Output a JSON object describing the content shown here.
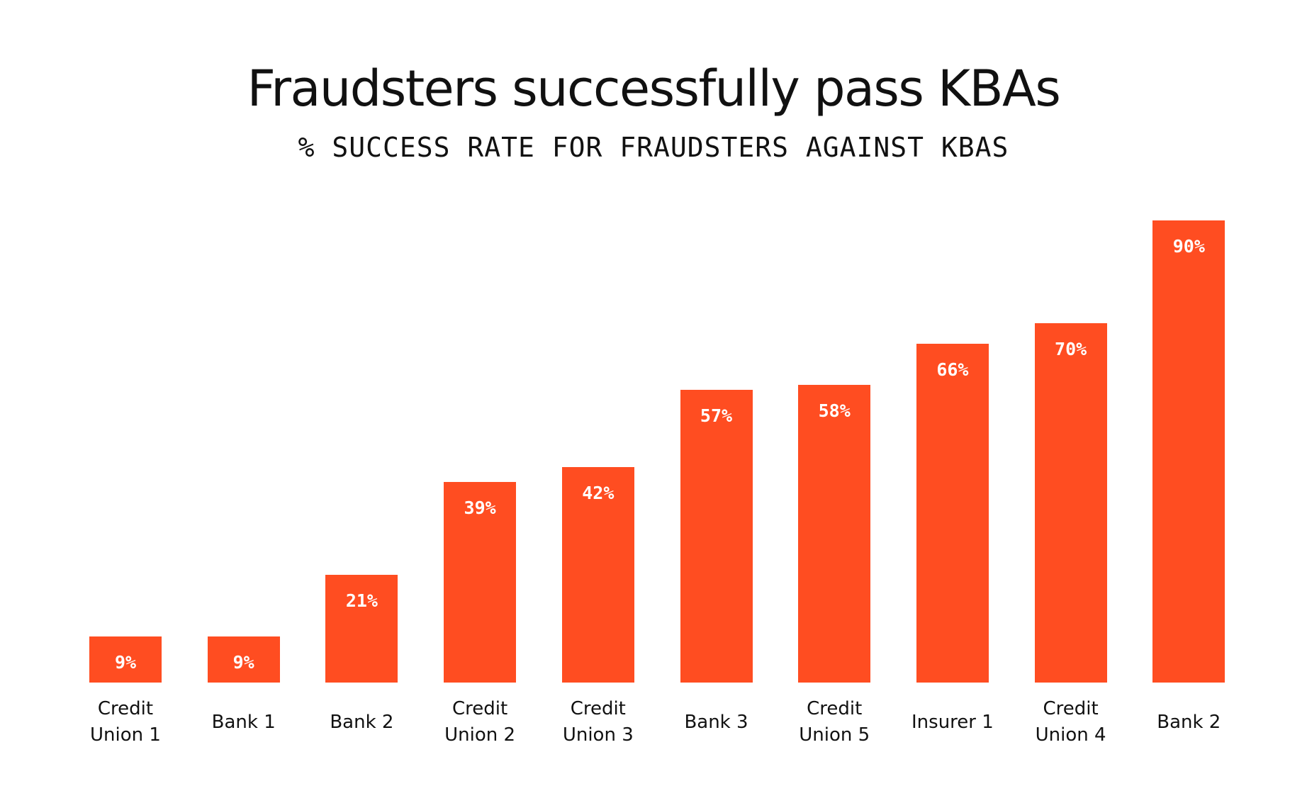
{
  "chart_data": {
    "type": "bar",
    "title": "Fraudsters successfully pass KBAs",
    "subtitle": "% SUCCESS RATE FOR FRAUDSTERS AGAINST KBAS",
    "categories": [
      "Credit Union 1",
      "Bank 1",
      "Bank 2",
      "Credit Union 2",
      "Credit Union 3",
      "Bank 3",
      "Credit Union 5",
      "Insurer 1",
      "Credit Union 4",
      "Bank 2"
    ],
    "values": [
      9,
      9,
      21,
      39,
      42,
      57,
      58,
      66,
      70,
      90
    ],
    "value_labels": [
      "9%",
      "9%",
      "21%",
      "39%",
      "42%",
      "57%",
      "58%",
      "66%",
      "70%",
      "90%"
    ],
    "color": "#ff4d21"
  }
}
